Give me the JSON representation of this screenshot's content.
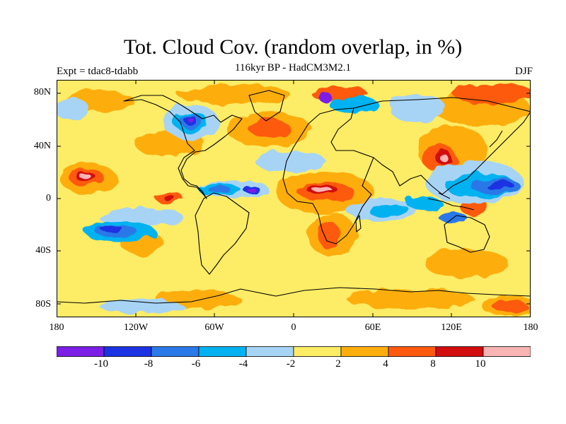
{
  "header": {
    "title": "Tot. Cloud Cov. (random overlap, in %)",
    "subtitle": "116kyr BP - HadCM3M2.1",
    "left_label": "Expt = tdac8-tdabb",
    "right_label": "DJF"
  },
  "map": {
    "lat_ticks": [
      "80N",
      "40N",
      "0",
      "40S",
      "80S"
    ],
    "lon_ticks": [
      "180",
      "120W",
      "60W",
      "0",
      "60E",
      "120E",
      "180"
    ]
  },
  "colorbar": {
    "colors": [
      "#7b1fe6",
      "#1c33e3",
      "#2b78e8",
      "#00b2f0",
      "#a7d4f5",
      "#fdec66",
      "#fdae0f",
      "#fd5a0e",
      "#d20d0d",
      "#fab4b4"
    ],
    "labels": [
      "-10",
      "-8",
      "-6",
      "-4",
      "-2",
      "2",
      "4",
      "8",
      "10"
    ]
  }
}
